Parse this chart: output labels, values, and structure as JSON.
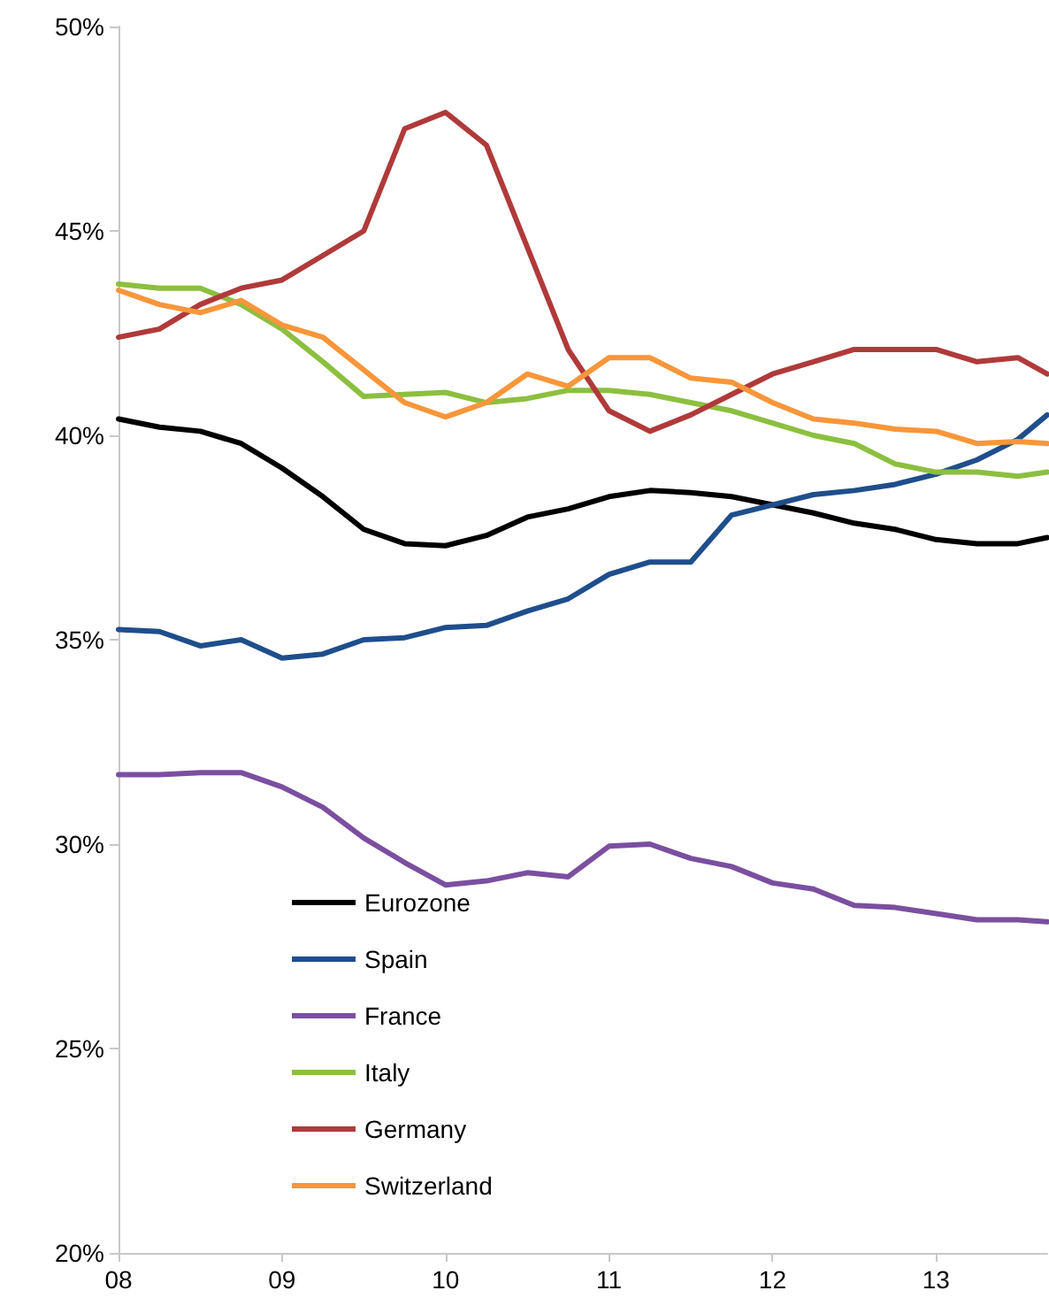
{
  "chart_data": {
    "type": "line",
    "x": [
      8,
      8.25,
      8.5,
      8.75,
      9,
      9.25,
      9.5,
      9.75,
      10,
      10.25,
      10.5,
      10.75,
      11,
      11.25,
      11.5,
      11.75,
      12,
      12.25,
      12.5,
      12.75,
      13,
      13.25,
      13.5,
      13.68
    ],
    "xlim": [
      8,
      13.68
    ],
    "xticks": [
      {
        "value": 8,
        "label": "08"
      },
      {
        "value": 9,
        "label": "09"
      },
      {
        "value": 10,
        "label": "10"
      },
      {
        "value": 11,
        "label": "11"
      },
      {
        "value": 12,
        "label": "12"
      },
      {
        "value": 13,
        "label": "13"
      }
    ],
    "ylim": [
      20,
      50
    ],
    "yticks": [
      {
        "value": 20,
        "label": "20%"
      },
      {
        "value": 25,
        "label": "25%"
      },
      {
        "value": 30,
        "label": "30%"
      },
      {
        "value": 35,
        "label": "35%"
      },
      {
        "value": 40,
        "label": "40%"
      },
      {
        "value": 45,
        "label": "45%"
      },
      {
        "value": 50,
        "label": "50%"
      }
    ],
    "grid": false,
    "legend": "bottom left",
    "marker": "none",
    "line_style": "solid",
    "series": [
      {
        "name": "Eurozone",
        "color": "#000000",
        "values": [
          40.4,
          40.2,
          40.1,
          39.8,
          39.2,
          38.5,
          37.7,
          37.35,
          37.3,
          37.55,
          38.0,
          38.2,
          38.5,
          38.65,
          38.6,
          38.5,
          38.3,
          38.1,
          37.85,
          37.7,
          37.45,
          37.35,
          37.35,
          37.5
        ]
      },
      {
        "name": "Spain",
        "color": "#1f4e8c",
        "values": [
          35.25,
          35.2,
          34.85,
          35.0,
          34.55,
          34.65,
          35.0,
          35.05,
          35.3,
          35.35,
          35.7,
          36.0,
          36.6,
          36.9,
          36.9,
          38.05,
          38.3,
          38.55,
          38.65,
          38.8,
          39.05,
          39.4,
          39.9,
          40.5
        ]
      },
      {
        "name": "France",
        "color": "#7b4fa0",
        "values": [
          31.7,
          31.7,
          31.75,
          31.75,
          31.4,
          30.9,
          30.15,
          29.55,
          29.0,
          29.1,
          29.3,
          29.2,
          29.95,
          30.0,
          29.65,
          29.45,
          29.05,
          28.9,
          28.5,
          28.45,
          28.3,
          28.15,
          28.15,
          28.1
        ]
      },
      {
        "name": "Italy",
        "color": "#8cbf3f",
        "values": [
          43.7,
          43.6,
          43.6,
          43.2,
          42.6,
          41.8,
          40.95,
          41.0,
          41.05,
          40.8,
          40.9,
          41.1,
          41.1,
          41.0,
          40.8,
          40.6,
          40.3,
          40.0,
          39.8,
          39.3,
          39.1,
          39.1,
          39.0,
          39.1
        ]
      },
      {
        "name": "Germany",
        "color": "#b03a3a",
        "values": [
          42.4,
          42.6,
          43.2,
          43.6,
          43.8,
          44.4,
          45.0,
          47.5,
          47.9,
          47.1,
          44.6,
          42.1,
          40.6,
          40.1,
          40.5,
          41.0,
          41.5,
          41.8,
          42.1,
          42.1,
          42.1,
          41.8,
          41.9,
          41.5
        ]
      },
      {
        "name": "Switzerland",
        "color": "#f7963a",
        "values": [
          43.55,
          43.2,
          43.0,
          43.3,
          42.7,
          42.4,
          41.6,
          40.8,
          40.45,
          40.8,
          41.5,
          41.2,
          41.9,
          41.9,
          41.4,
          41.3,
          40.8,
          40.4,
          40.3,
          40.15,
          40.1,
          39.8,
          39.85,
          39.8
        ]
      }
    ]
  }
}
